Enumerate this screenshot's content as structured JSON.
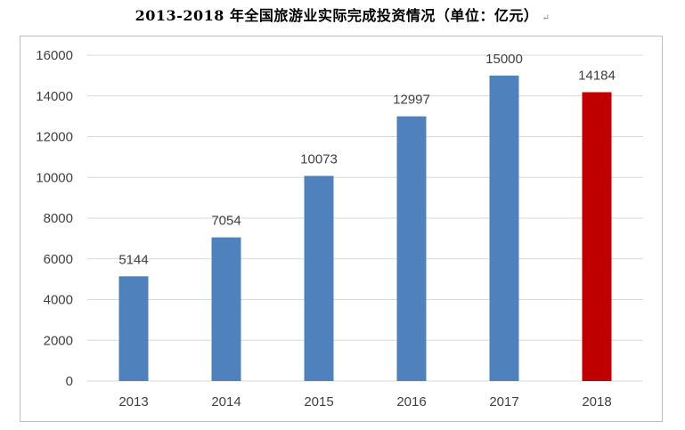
{
  "chart_data": {
    "type": "bar",
    "title": "2013-2018 年全国旅游业实际完成投资情况（单位：亿元）",
    "title_mark": "↵",
    "categories": [
      "2013",
      "2014",
      "2015",
      "2016",
      "2017",
      "2018"
    ],
    "values": [
      5144,
      7054,
      10073,
      12997,
      15000,
      14184
    ],
    "value_labels": [
      "5144",
      "7054",
      "10073",
      "12997",
      "15000",
      "14184"
    ],
    "ylim": [
      0,
      16000
    ],
    "yticks": [
      0,
      2000,
      4000,
      6000,
      8000,
      10000,
      12000,
      14000,
      16000
    ],
    "ytick_labels": [
      "0",
      "2000",
      "4000",
      "6000",
      "8000",
      "10000",
      "12000",
      "14000",
      "16000"
    ],
    "grid": true,
    "colors": {
      "default_bar": "#4f81bd",
      "highlight_bar": "#c00000",
      "gridline": "#d9d9d9",
      "text": "#404040"
    },
    "highlight_index": 5
  }
}
